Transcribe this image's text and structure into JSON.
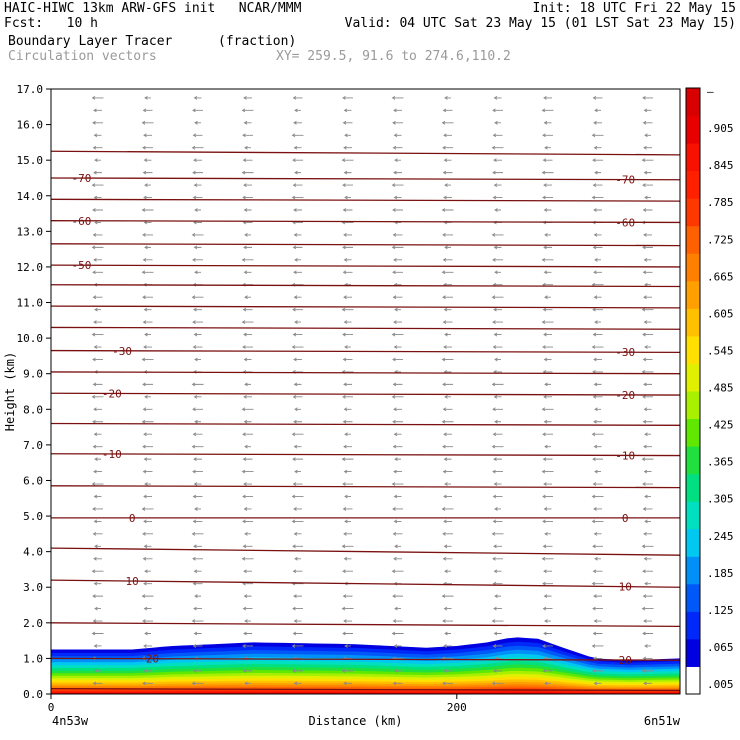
{
  "header": {
    "line1_left": "HAIC-HIWC 13km ARW-GFS init   NCAR/MMM",
    "line1_right": "Init: 18 UTC Fri 22 May 15",
    "line2_left": "Fcst:   10 h",
    "line2_right": "Valid: 04 UTC Sat 23 May 15 (01 LST Sat 23 May 15)",
    "field_name": "Boundary Layer Tracer",
    "field_units": "(fraction)",
    "vector_label": "Circulation vectors",
    "xy_label": "XY= 259.5, 91.6 to 274.6,110.2"
  },
  "chart_data": {
    "type": "heatmap",
    "title": "Boundary Layer Tracer (fraction)",
    "xlabel": "Distance (km)",
    "ylabel": "Height (km)",
    "xlim": [
      0,
      310
    ],
    "ylim": [
      0,
      17
    ],
    "x_ticks": [
      0,
      200
    ],
    "y_ticks": [
      "0.0",
      "1.0",
      "2.0",
      "3.0",
      "4.0",
      "5.0",
      "6.0",
      "7.0",
      "8.0",
      "9.0",
      "10.0",
      "11.0",
      "12.0",
      "13.0",
      "14.0",
      "15.0",
      "16.0",
      "17.0"
    ],
    "x_endpoint_labels": [
      "4n53w",
      "6n51w"
    ],
    "colorbar_labels": [
      ".005",
      ".065",
      ".125",
      ".185",
      ".245",
      ".305",
      ".365",
      ".425",
      ".485",
      ".545",
      ".605",
      ".665",
      ".725",
      ".785",
      ".845",
      ".905",
      "–"
    ],
    "colorbar_colors": [
      "#ffffff",
      "#0000e0",
      "#0028f8",
      "#0058f8",
      "#0090f8",
      "#00c8f0",
      "#00e0c0",
      "#00e080",
      "#20e040",
      "#60e800",
      "#a8f000",
      "#e0f000",
      "#ffe000",
      "#ffc000",
      "#ffa000",
      "#ff8000",
      "#ff6000",
      "#ff3800",
      "#ff2000",
      "#f81000",
      "#e80000",
      "#d80000"
    ],
    "tracer_top_km": [
      {
        "x": 0,
        "top": 1.25
      },
      {
        "x": 40,
        "top": 1.25
      },
      {
        "x": 60,
        "top": 1.35
      },
      {
        "x": 100,
        "top": 1.45
      },
      {
        "x": 150,
        "top": 1.4
      },
      {
        "x": 185,
        "top": 1.3
      },
      {
        "x": 200,
        "top": 1.35
      },
      {
        "x": 215,
        "top": 1.45
      },
      {
        "x": 228,
        "top": 1.6
      },
      {
        "x": 240,
        "top": 1.55
      },
      {
        "x": 255,
        "top": 1.25
      },
      {
        "x": 268,
        "top": 1.0
      },
      {
        "x": 285,
        "top": 0.95
      },
      {
        "x": 310,
        "top": 1.0
      }
    ],
    "temperature_contours": [
      {
        "label": "-70",
        "y_left": 14.5,
        "y_right": 14.45,
        "label_x": [
          15,
          283
        ]
      },
      {
        "label": "-60",
        "y_left": 13.3,
        "y_right": 13.25,
        "label_x": [
          15,
          283
        ]
      },
      {
        "label": "-50",
        "y_left": 12.05,
        "y_right": 12.0,
        "label_x": [
          15
        ]
      },
      {
        "label": "-30",
        "y_left": 9.65,
        "y_right": 9.6,
        "label_x": [
          35,
          283
        ]
      },
      {
        "label": "-20",
        "y_left": 8.45,
        "y_right": 8.4,
        "label_x": [
          30,
          283
        ]
      },
      {
        "label": "-10",
        "y_left": 6.75,
        "y_right": 6.7,
        "label_x": [
          30,
          283
        ]
      },
      {
        "label": "0",
        "y_left": 4.95,
        "y_right": 4.95,
        "label_x": [
          40,
          283
        ]
      },
      {
        "label": "10",
        "y_left": 3.2,
        "y_right": 3.0,
        "label_x": [
          40,
          283
        ]
      },
      {
        "label": "20",
        "y_left": 1.0,
        "y_right": 0.95,
        "label_x": [
          50,
          283
        ]
      }
    ],
    "unlabeled_contours_km": [
      [
        15.25,
        15.15
      ],
      [
        13.9,
        13.85
      ],
      [
        12.65,
        12.6
      ],
      [
        11.5,
        11.45
      ],
      [
        10.9,
        10.85
      ],
      [
        10.3,
        10.25
      ],
      [
        9.05,
        9.0
      ],
      [
        7.6,
        7.55
      ],
      [
        5.85,
        5.8
      ],
      [
        4.1,
        3.9
      ],
      [
        2.0,
        1.9
      ],
      [
        0.15,
        0.1
      ]
    ],
    "grid": false,
    "legend": "colorbar-right"
  }
}
